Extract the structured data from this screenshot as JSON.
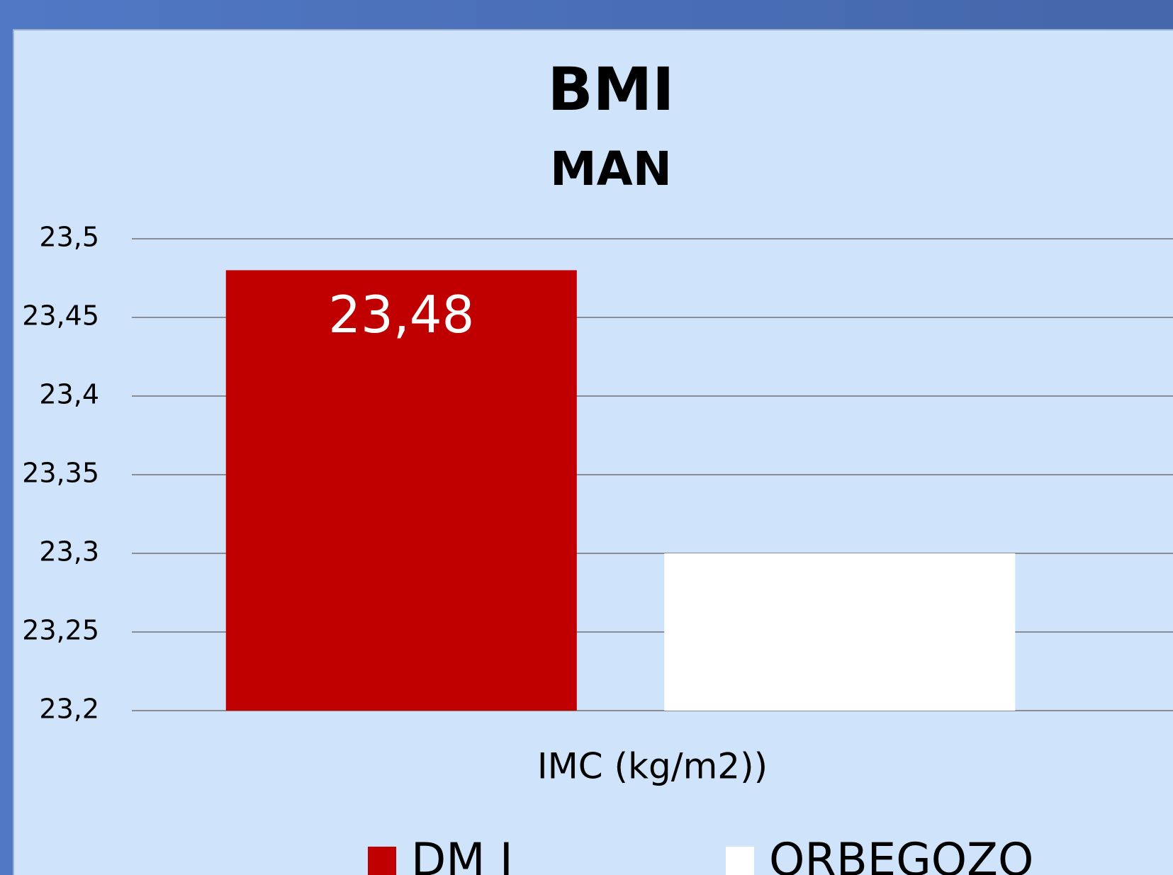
{
  "chart_data": {
    "type": "bar",
    "title": "BMI",
    "subtitle": "MAN",
    "categories": [
      "IMC (kg/m2))"
    ],
    "series": [
      {
        "name": "DM I",
        "color": "#c00000",
        "values": [
          23.48
        ],
        "value_labels": [
          "23,48"
        ]
      },
      {
        "name": "ORBEGOZO",
        "color": "#ffffff",
        "values": [
          23.3
        ]
      }
    ],
    "ylim": [
      23.2,
      23.5
    ],
    "yticks": [
      {
        "value": 23.2,
        "label": "23,2"
      },
      {
        "value": 23.25,
        "label": "23,25"
      },
      {
        "value": 23.3,
        "label": "23,3"
      },
      {
        "value": 23.35,
        "label": "23,35"
      },
      {
        "value": 23.4,
        "label": "23,4"
      },
      {
        "value": 23.45,
        "label": "23,45"
      },
      {
        "value": 23.5,
        "label": "23,5"
      }
    ],
    "grid": true,
    "legend": "bottom"
  }
}
